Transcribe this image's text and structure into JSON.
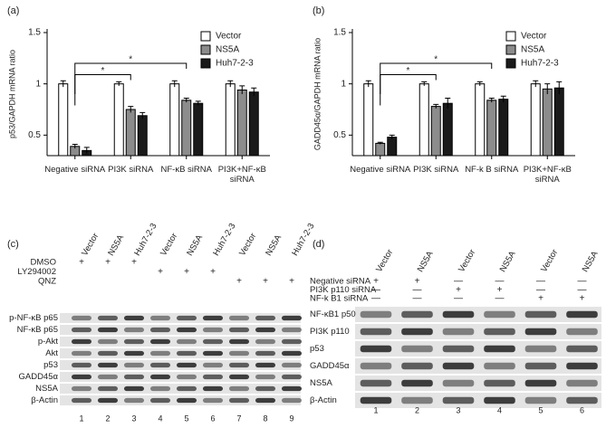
{
  "chart_data": [
    {
      "type": "bar",
      "panel": "(a)",
      "y_label": "p53/GAPDH mRNA ratio",
      "categories": [
        "Negative siRNA",
        "PI3K siRNA",
        "NF-κB siRNA",
        "PI3K+NF-κB siRNA"
      ],
      "series": [
        {
          "name": "Vector",
          "color": "#ffffff",
          "values": [
            1.0,
            1.0,
            1.0,
            1.0
          ],
          "errors": [
            0.03,
            0.02,
            0.03,
            0.03
          ]
        },
        {
          "name": "NS5A",
          "color": "#8c8c8c",
          "values": [
            0.39,
            0.75,
            0.84,
            0.94
          ],
          "errors": [
            0.02,
            0.03,
            0.02,
            0.04
          ]
        },
        {
          "name": "Huh7-2-3",
          "color": "#1a1a1a",
          "values": [
            0.35,
            0.69,
            0.81,
            0.92
          ],
          "errors": [
            0.03,
            0.03,
            0.02,
            0.04
          ]
        }
      ],
      "ylim": [
        0.3,
        1.5
      ],
      "yticks": [
        0.5,
        1.0,
        1.5
      ],
      "legend": "top-right",
      "annotations": [
        "*",
        "*"
      ]
    },
    {
      "type": "bar",
      "panel": "(b)",
      "y_label": "GADD45α/GAPDH mRNA ratio",
      "categories": [
        "Negative siRNA",
        "PI3K siRNA",
        "NF-k B siRNA",
        "PI3K+NF-κB siRNA"
      ],
      "series": [
        {
          "name": "Vector",
          "color": "#ffffff",
          "values": [
            1.0,
            1.0,
            1.0,
            1.0
          ],
          "errors": [
            0.03,
            0.02,
            0.02,
            0.03
          ]
        },
        {
          "name": "NS5A",
          "color": "#8c8c8c",
          "values": [
            0.42,
            0.78,
            0.84,
            0.95
          ],
          "errors": [
            0.01,
            0.02,
            0.02,
            0.05
          ]
        },
        {
          "name": "Huh7-2-3",
          "color": "#1a1a1a",
          "values": [
            0.48,
            0.81,
            0.85,
            0.96
          ],
          "errors": [
            0.02,
            0.05,
            0.03,
            0.06
          ]
        }
      ],
      "ylim": [
        0.3,
        1.5
      ],
      "yticks": [
        0.5,
        1.0,
        1.5
      ],
      "legend": "top-right",
      "annotations": [
        "*",
        "*"
      ]
    }
  ],
  "panel_c": {
    "panel": "(c)",
    "lanes": [
      "Vector",
      "NS5A",
      "Huh7-2-3",
      "Vector",
      "NS5A",
      "Huh7-2-3",
      "Vector",
      "NS5A",
      "Huh7-2-3"
    ],
    "treatments": [
      {
        "label": "DMSO",
        "marks": [
          "+",
          "+",
          "+",
          null,
          null,
          null,
          null,
          null,
          null
        ]
      },
      {
        "label": "LY294002",
        "marks": [
          null,
          null,
          null,
          "+",
          "+",
          "+",
          null,
          null,
          null
        ]
      },
      {
        "label": "QNZ",
        "marks": [
          null,
          null,
          null,
          null,
          null,
          null,
          "+",
          "+",
          "+"
        ]
      }
    ],
    "blots": [
      "p-NF-κB p65",
      "NF-κB p65",
      "p-Akt",
      "Akt",
      "p53",
      "GADD45α",
      "NS5A",
      "β-Actin"
    ],
    "lane_numbers": [
      1,
      2,
      3,
      4,
      5,
      6,
      7,
      8,
      9
    ]
  },
  "panel_d": {
    "panel": "(d)",
    "lanes": [
      "Vector",
      "NS5A",
      "Vector",
      "NS5A",
      "Vector",
      "NS5A"
    ],
    "treatments": [
      {
        "label": "Negative siRNA",
        "marks": [
          "+",
          "+",
          "—",
          "—",
          "—",
          "—"
        ]
      },
      {
        "label": "PI3K p110 siRNA",
        "marks": [
          "—",
          "—",
          "+",
          "+",
          "—",
          "—"
        ]
      },
      {
        "label": "NF-k B1 siRNA",
        "marks": [
          "—",
          "—",
          "—",
          "—",
          "+",
          "+"
        ]
      }
    ],
    "blots": [
      "NF-κB1 p50",
      "PI3K p110",
      "p53",
      "GADD45α",
      "NS5A",
      "β-Actin"
    ],
    "lane_numbers": [
      1,
      2,
      3,
      4,
      5,
      6
    ]
  }
}
